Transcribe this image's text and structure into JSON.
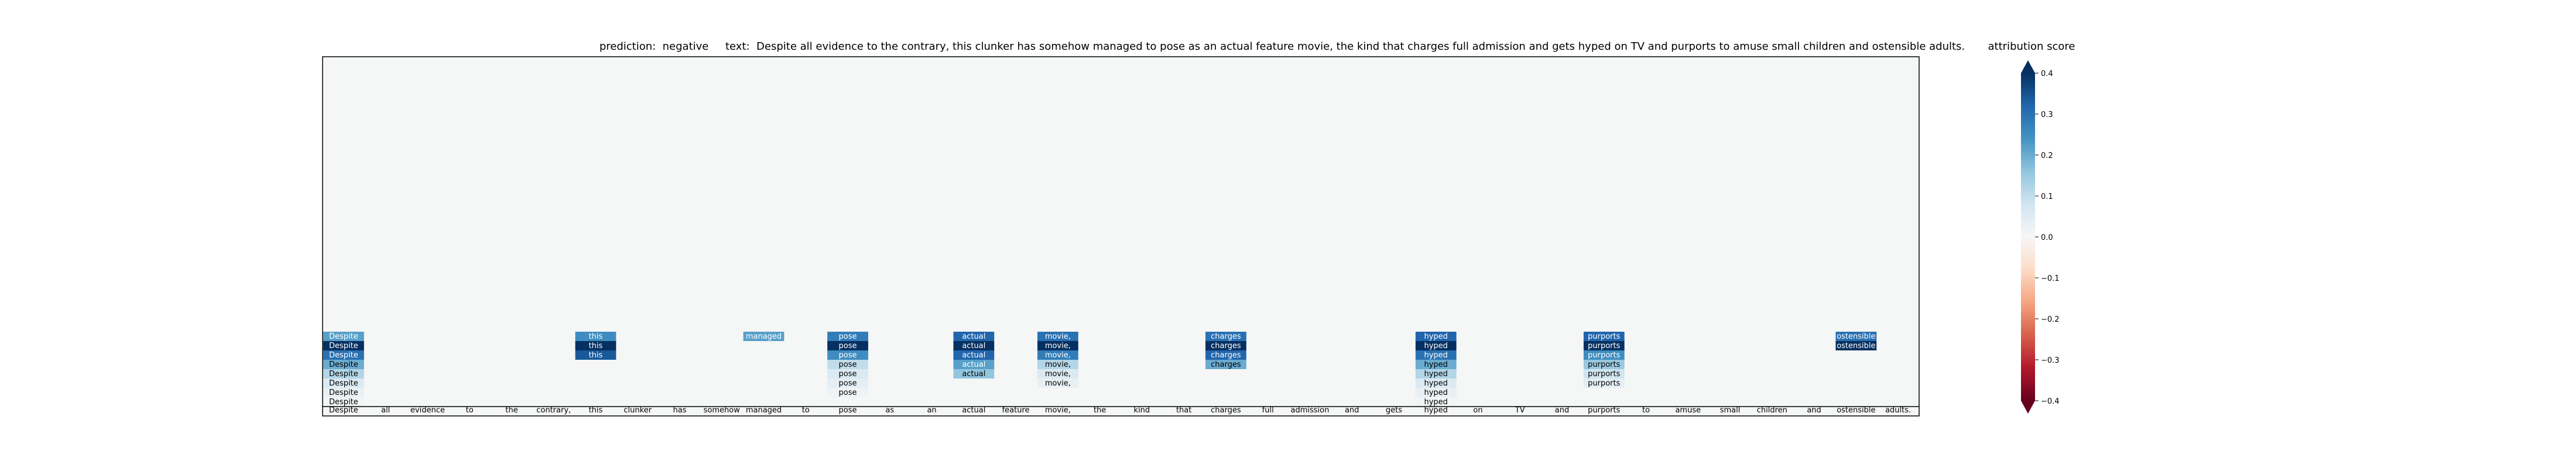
{
  "chart_data": {
    "type": "heatmap",
    "prediction_label": "prediction:",
    "prediction": "negative",
    "text_label": "text:",
    "text": "Despite all evidence to the contrary, this clunker has somehow managed to pose as an actual feature movie, the kind that charges full admission and gets hyped on TV and purports to amuse small children and ostensible adults.",
    "tokens": [
      "Despite",
      "all",
      "evidence",
      "to",
      "the",
      "contrary,",
      "this",
      "clunker",
      "has",
      "somehow",
      "managed",
      "to",
      "pose",
      "as",
      "an",
      "actual",
      "feature",
      "movie,",
      "the",
      "kind",
      "that",
      "charges",
      "full",
      "admission",
      "and",
      "gets",
      "hyped",
      "on",
      "TV",
      "and",
      "purports",
      "to",
      "amuse",
      "small",
      "children",
      "and",
      "ostensible",
      "adults."
    ],
    "layers": 8,
    "columns": [
      {
        "token_index": 0,
        "token": "Despite",
        "scores": [
          0.22,
          0.4,
          0.3,
          0.2,
          0.12,
          0.06,
          0.03,
          0.01
        ]
      },
      {
        "token_index": 6,
        "token": "this",
        "scores": [
          0.25,
          0.4,
          0.34
        ]
      },
      {
        "token_index": 10,
        "token": "managed",
        "scores": [
          0.22
        ]
      },
      {
        "token_index": 12,
        "token": "pose",
        "scores": [
          0.28,
          0.4,
          0.25,
          0.1,
          0.06,
          0.04,
          0.02
        ]
      },
      {
        "token_index": 15,
        "token": "actual",
        "scores": [
          0.32,
          0.4,
          0.32,
          0.22,
          0.16
        ]
      },
      {
        "token_index": 17,
        "token": "movie,",
        "scores": [
          0.3,
          0.4,
          0.28,
          0.12,
          0.06,
          0.03
        ]
      },
      {
        "token_index": 21,
        "token": "charges",
        "scores": [
          0.3,
          0.4,
          0.32,
          0.2
        ]
      },
      {
        "token_index": 26,
        "token": "hyped",
        "scores": [
          0.32,
          0.4,
          0.3,
          0.2,
          0.12,
          0.06,
          0.03,
          0.01
        ]
      },
      {
        "token_index": 30,
        "token": "purports",
        "scores": [
          0.32,
          0.4,
          0.25,
          0.15,
          0.08,
          0.04
        ]
      },
      {
        "token_index": 36,
        "token": "ostensible",
        "scores": [
          0.3,
          0.4
        ]
      }
    ],
    "colorbar": {
      "label": "attribution score",
      "min": -0.4,
      "max": 0.4,
      "ticks": [
        0.4,
        0.3,
        0.2,
        0.1,
        0.0,
        -0.1,
        -0.2,
        -0.3,
        -0.4
      ],
      "tick_labels": [
        "0.4",
        "0.3",
        "0.2",
        "0.1",
        "0.0",
        "−0.1",
        "−0.2",
        "−0.3",
        "−0.4"
      ],
      "colormap": "RdBu",
      "extend": "both"
    },
    "colors": {
      "background": "#f5f6f6",
      "frame": "#000000"
    }
  }
}
